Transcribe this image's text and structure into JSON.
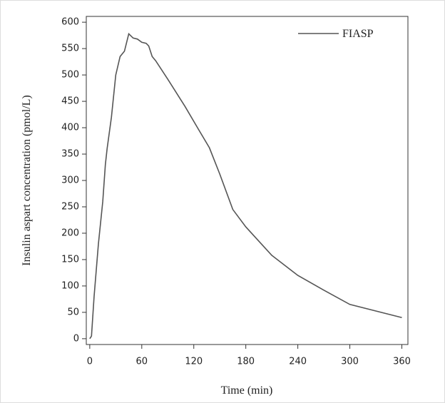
{
  "chart_data": {
    "type": "line",
    "x_label": "Time (min)",
    "y_label": "Insulin aspart concentration (pmol/L)",
    "series": [
      {
        "name": "FIASP",
        "color": "#555555",
        "x": [
          0,
          2,
          5,
          10,
          15,
          18,
          20,
          25,
          30,
          35,
          40,
          45,
          50,
          55,
          60,
          65,
          68,
          72,
          76,
          90,
          110,
          125,
          138,
          150,
          165,
          180,
          210,
          240,
          270,
          300,
          360
        ],
        "values": [
          0,
          5,
          80,
          180,
          260,
          330,
          360,
          420,
          500,
          535,
          545,
          578,
          570,
          568,
          562,
          560,
          555,
          535,
          527,
          492,
          440,
          398,
          362,
          312,
          245,
          212,
          158,
          120,
          92,
          65,
          40
        ]
      }
    ],
    "xlim": [
      -4,
      367
    ],
    "xticks": [
      0,
      60,
      120,
      180,
      240,
      300,
      360
    ],
    "ylim": [
      -11,
      611
    ],
    "yticks": [
      0,
      50,
      100,
      150,
      200,
      250,
      300,
      350,
      400,
      450,
      500,
      550,
      600
    ],
    "legend": "upper right"
  }
}
